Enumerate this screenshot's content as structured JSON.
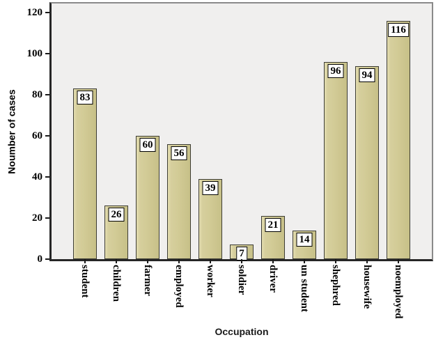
{
  "figure": {
    "background": "#ffffff",
    "plot_background": "#f0efee",
    "frame_color": "#8a8a8a",
    "axis_color": "#262626"
  },
  "chart_data": {
    "type": "bar",
    "title": "",
    "xlabel": "Occupation",
    "ylabel": "Noumber of cases",
    "categories": [
      "student",
      "children",
      "farmer",
      "employed",
      "worker",
      "soldier",
      "driver",
      "un student",
      "shephred",
      "housewife",
      "noemployed"
    ],
    "values": [
      83,
      26,
      60,
      56,
      39,
      7,
      21,
      14,
      96,
      94,
      116
    ],
    "value_labels": [
      "83",
      "26",
      "60",
      "56",
      "39",
      "7",
      "21",
      "14",
      "96",
      "94",
      "116"
    ],
    "yticks": [
      0,
      20,
      40,
      60,
      80,
      100,
      120
    ],
    "ylim": [
      0,
      124
    ],
    "grid": false,
    "legend": null,
    "bar_color": "#d2cb96",
    "bar_border_color": "#3c3c34",
    "value_label_box": {
      "background": "#ffffff",
      "border": "#000000"
    }
  }
}
